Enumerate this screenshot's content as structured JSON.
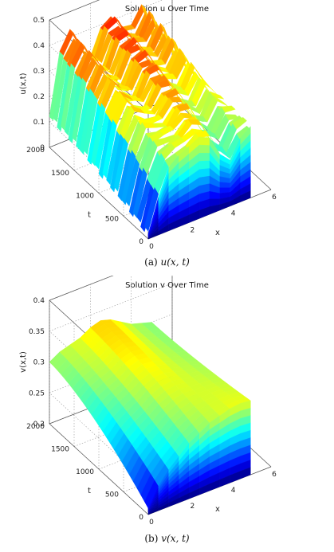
{
  "chart_data": [
    {
      "type": "surface",
      "title": "Solution u Over Time",
      "caption": "(a)",
      "caption_math": "u(x, t)",
      "xlabel": "x",
      "ylabel": "t",
      "zlabel": "u(x,t)",
      "xlim": [
        0,
        6
      ],
      "ylim": [
        0,
        2000
      ],
      "zlim": [
        0,
        0.5
      ],
      "xticks": [
        "0",
        "2",
        "4",
        "6"
      ],
      "yticks": [
        "0",
        "500",
        "1000",
        "1500",
        "2000"
      ],
      "zticks": [
        "0",
        "0.1",
        "0.2",
        "0.3",
        "0.4",
        "0.5"
      ],
      "colormap": "jet",
      "grid": true,
      "x": [
        0,
        0.5,
        1,
        1.5,
        2,
        2.5,
        3,
        3.5,
        4,
        4.5,
        5
      ],
      "profile_late_t": [
        0.12,
        0.35,
        0.42,
        0.34,
        0.3,
        0.4,
        0.42,
        0.35,
        0.34,
        0.41,
        0.28
      ],
      "profile_t0": [
        0.02,
        0.15,
        0.25,
        0.28,
        0.3,
        0.32,
        0.3,
        0.22,
        0.18,
        0.25,
        0.28
      ]
    },
    {
      "type": "surface",
      "title": "Solution v Over Time",
      "caption": "(b)",
      "caption_math": "v(x, t)",
      "xlabel": "x",
      "ylabel": "t",
      "zlabel": "v(x,t)",
      "xlim": [
        0,
        6
      ],
      "ylim": [
        0,
        2000
      ],
      "zlim": [
        0.2,
        0.4
      ],
      "xticks": [
        "0",
        "2",
        "4",
        "6"
      ],
      "yticks": [
        "0",
        "500",
        "1000",
        "1500",
        "2000"
      ],
      "zticks": [
        "0.2",
        "0.25",
        "0.3",
        "0.35",
        "0.4"
      ],
      "colormap": "jet",
      "grid": true,
      "x": [
        0,
        0.5,
        1,
        1.5,
        2,
        2.5,
        3,
        3.5,
        4,
        4.5,
        5
      ],
      "profile_late_t": [
        0.3,
        0.31,
        0.315,
        0.32,
        0.33,
        0.335,
        0.33,
        0.32,
        0.31,
        0.305,
        0.3
      ],
      "profile_t0": [
        0.21,
        0.24,
        0.26,
        0.275,
        0.29,
        0.3,
        0.31,
        0.315,
        0.32,
        0.322,
        0.32
      ]
    }
  ]
}
